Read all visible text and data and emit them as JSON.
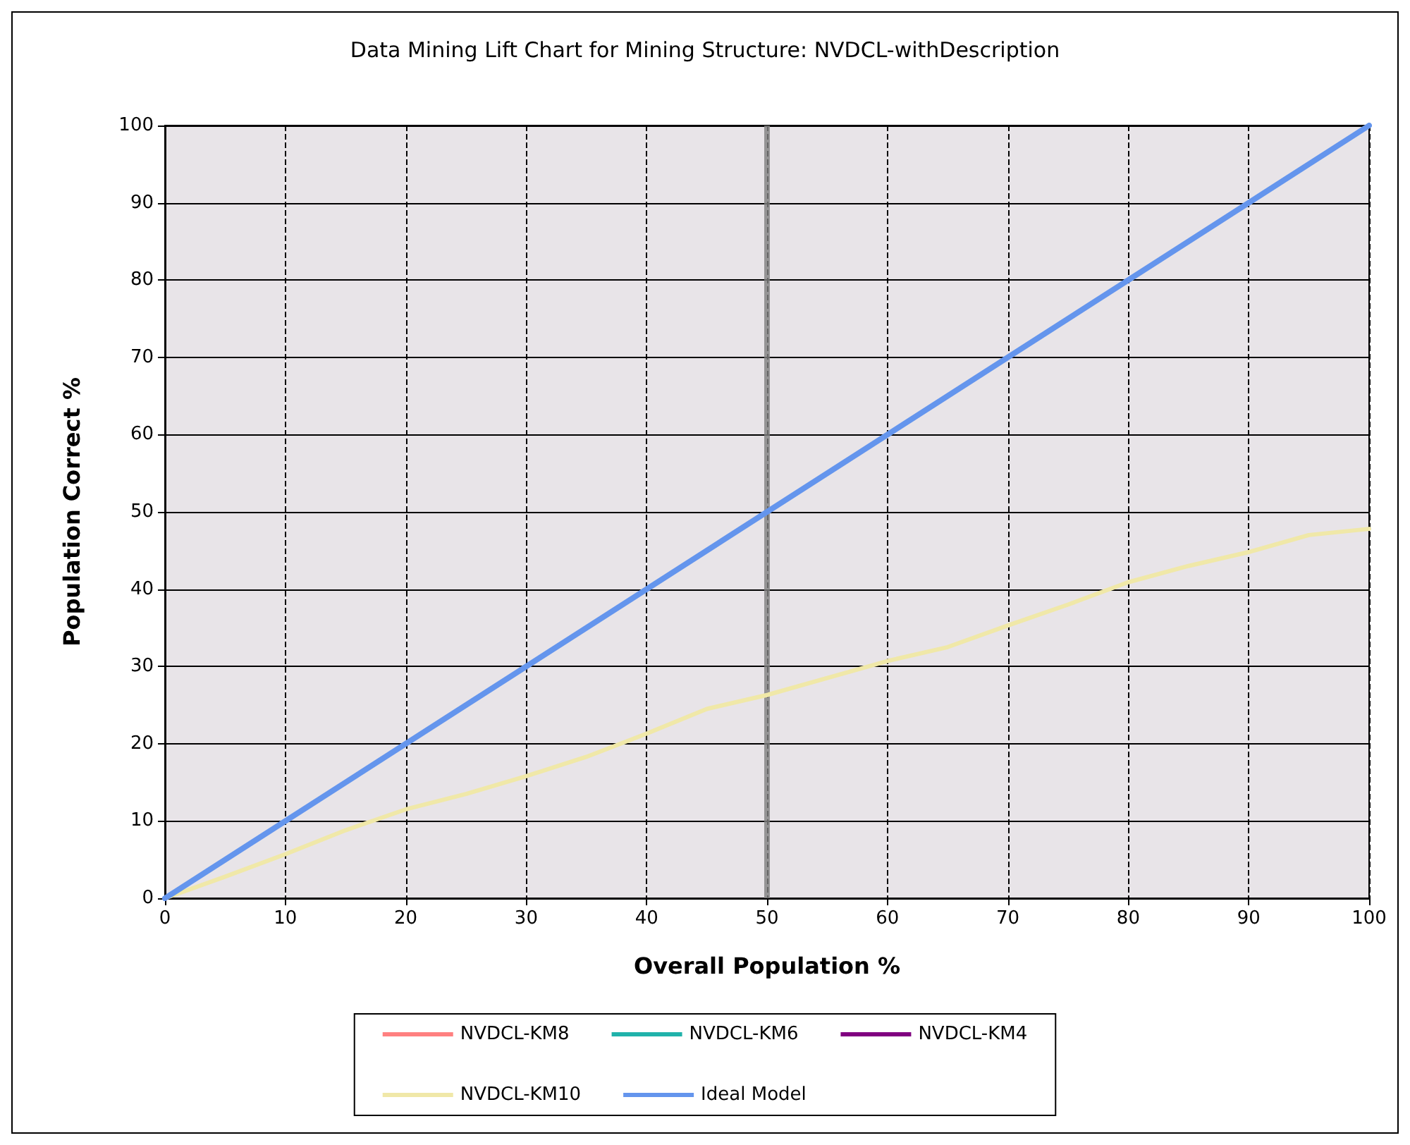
{
  "chart_data": {
    "type": "line",
    "title": "Data Mining Lift Chart for Mining Structure: NVDCL-withDescription",
    "xlabel": "Overall Population %",
    "ylabel": "Population Correct %",
    "xlim": [
      0,
      100
    ],
    "xticks": [
      0,
      10,
      20,
      30,
      40,
      50,
      60,
      70,
      80,
      90,
      100
    ],
    "ylim": [
      0,
      100
    ],
    "yticks": [
      0,
      10,
      20,
      30,
      40,
      50,
      60,
      70,
      80,
      90,
      100
    ],
    "grid": true,
    "legend": "bottom",
    "marker": "none",
    "line_style": "solid",
    "ref_lines": [
      {
        "axis": "x",
        "value": 50,
        "color": "#808080"
      }
    ],
    "series": [
      {
        "name": "NVDCL-KM8",
        "color": "#ff8080"
      },
      {
        "name": "NVDCL-KM6",
        "color": "#20b2aa"
      },
      {
        "name": "NVDCL-KM4",
        "color": "#800080"
      },
      {
        "name": "NVDCL-KM10",
        "color": "#f0e8a8",
        "x": [
          0,
          5,
          10,
          15,
          20,
          25,
          30,
          35,
          40,
          45,
          50,
          55,
          60,
          65,
          70,
          75,
          80,
          85,
          90,
          95,
          100
        ],
        "values": [
          0,
          2.8,
          5.7,
          8.8,
          11.5,
          13.5,
          15.8,
          18.3,
          21.3,
          24.5,
          26.3,
          28.5,
          30.7,
          32.5,
          35.3,
          38,
          40.9,
          43,
          44.8,
          47,
          47.8
        ]
      },
      {
        "name": "Ideal Model",
        "color": "#6495ed",
        "x": [
          0,
          100
        ],
        "values": [
          0,
          100
        ]
      }
    ]
  }
}
